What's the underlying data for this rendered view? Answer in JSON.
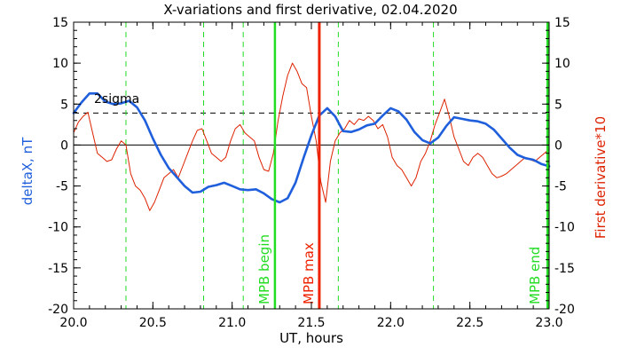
{
  "chart_data": {
    "type": "line",
    "title": "X-variations and first derivative, 02.04.2020",
    "xlabel": "UT, hours",
    "ylabel_left": "deltaX, nT",
    "ylabel_right": "First derivative*10",
    "xlim": [
      20.0,
      23.0
    ],
    "ylim": [
      -20,
      15
    ],
    "x_ticks": [
      "20.0",
      "20.5",
      "21.0",
      "21.5",
      "22.0",
      "22.5",
      "23.0"
    ],
    "y_ticks": [
      "15",
      "10",
      "5",
      "0",
      "-5",
      "-10",
      "-15",
      "-20"
    ],
    "threshold": {
      "value": 3.9,
      "label": "2sigma"
    },
    "zero_line": 0,
    "dashed_vlines": [
      20.33,
      20.82,
      21.07,
      21.67,
      22.27
    ],
    "markers": [
      {
        "x": 21.27,
        "label": "MPB begin",
        "color": "#22dd22"
      },
      {
        "x": 21.55,
        "label": "MPB max",
        "color": "#ee2200"
      },
      {
        "x": 22.99,
        "label": "MPB end",
        "color": "#22dd22"
      }
    ],
    "series": [
      {
        "color": "#1f5fdc",
        "x": [
          20.0,
          20.05,
          20.1,
          20.15,
          20.2,
          20.25,
          20.3,
          20.35,
          20.4,
          20.45,
          20.5,
          20.55,
          20.6,
          20.65,
          20.7,
          20.75,
          20.8,
          20.85,
          20.9,
          20.95,
          21.0,
          21.05,
          21.1,
          21.15,
          21.2,
          21.25,
          21.3,
          21.35,
          21.4,
          21.45,
          21.5,
          21.55,
          21.6,
          21.65,
          21.7,
          21.75,
          21.8,
          21.85,
          21.9,
          21.95,
          22.0,
          22.05,
          22.1,
          22.15,
          22.2,
          22.25,
          22.3,
          22.35,
          22.4,
          22.45,
          22.5,
          22.55,
          22.6,
          22.65,
          22.7,
          22.75,
          22.8,
          22.85,
          22.9,
          22.95,
          23.0
        ],
        "values": [
          3.9,
          5.2,
          6.3,
          6.3,
          5.3,
          5.0,
          5.1,
          5.4,
          4.6,
          3.0,
          0.8,
          -1.2,
          -2.8,
          -3.9,
          -5.0,
          -5.8,
          -5.7,
          -5.1,
          -4.9,
          -4.6,
          -5.0,
          -5.4,
          -5.5,
          -5.4,
          -5.9,
          -6.6,
          -7.0,
          -6.5,
          -4.6,
          -1.6,
          1.2,
          3.6,
          4.5,
          3.5,
          1.7,
          1.6,
          1.9,
          2.4,
          2.6,
          3.6,
          4.5,
          4.1,
          3.1,
          1.6,
          0.6,
          0.2,
          0.9,
          2.3,
          3.4,
          3.2,
          3.0,
          2.9,
          2.6,
          1.9,
          0.8,
          -0.3,
          -1.2,
          -1.6,
          -1.8,
          -2.3,
          -2.6
        ]
      },
      {
        "color": "#dd2200",
        "x": [
          20.0,
          20.03,
          20.06,
          20.09,
          20.12,
          20.15,
          20.18,
          20.21,
          20.24,
          20.27,
          20.3,
          20.33,
          20.36,
          20.39,
          20.42,
          20.45,
          20.48,
          20.51,
          20.54,
          20.57,
          20.6,
          20.63,
          20.66,
          20.69,
          20.72,
          20.75,
          20.78,
          20.81,
          20.84,
          20.87,
          20.9,
          20.93,
          20.96,
          20.99,
          21.02,
          21.05,
          21.08,
          21.11,
          21.14,
          21.17,
          21.2,
          21.23,
          21.26,
          21.29,
          21.32,
          21.35,
          21.38,
          21.41,
          21.44,
          21.47,
          21.5,
          21.53,
          21.56,
          21.59,
          21.62,
          21.65,
          21.68,
          21.71,
          21.74,
          21.77,
          21.8,
          21.83,
          21.86,
          21.89,
          21.92,
          21.95,
          21.98,
          22.01,
          22.04,
          22.07,
          22.1,
          22.13,
          22.16,
          22.19,
          22.22,
          22.25,
          22.28,
          22.31,
          22.34,
          22.37,
          22.4,
          22.43,
          22.46,
          22.49,
          22.52,
          22.55,
          22.58,
          22.61,
          22.64,
          22.67,
          22.7,
          22.73,
          22.76,
          22.79,
          22.82,
          22.85,
          22.88,
          22.91,
          22.94,
          22.97,
          23.0
        ],
        "values": [
          1.5,
          2.8,
          3.5,
          4.0,
          1.5,
          -1.0,
          -1.5,
          -2.0,
          -1.8,
          -0.5,
          0.5,
          0.0,
          -3.5,
          -5.0,
          -5.5,
          -6.5,
          -8.0,
          -7.0,
          -5.5,
          -4.0,
          -3.5,
          -3.0,
          -4.0,
          -2.5,
          -1.0,
          0.5,
          1.8,
          2.0,
          0.5,
          -1.0,
          -1.5,
          -2.0,
          -1.5,
          0.5,
          2.0,
          2.5,
          1.5,
          1.0,
          0.5,
          -1.5,
          -3.0,
          -3.2,
          -1.0,
          3.0,
          6.0,
          8.5,
          10.0,
          9.0,
          7.5,
          7.0,
          3.5,
          0.5,
          -4.5,
          -7.0,
          -2.0,
          0.5,
          1.5,
          2.0,
          3.0,
          2.5,
          3.2,
          3.0,
          3.5,
          3.0,
          2.0,
          2.5,
          1.0,
          -1.5,
          -2.5,
          -3.0,
          -4.0,
          -5.0,
          -4.0,
          -2.0,
          -1.0,
          0.5,
          2.5,
          4.0,
          5.6,
          3.5,
          1.0,
          -0.5,
          -2.0,
          -2.5,
          -1.5,
          -1.0,
          -1.5,
          -2.5,
          -3.5,
          -4.0,
          -3.8,
          -3.5,
          -3.0,
          -2.5,
          -2.0,
          -1.5,
          -1.8,
          -2.0,
          -1.5,
          -1.0,
          -0.5
        ]
      }
    ]
  }
}
